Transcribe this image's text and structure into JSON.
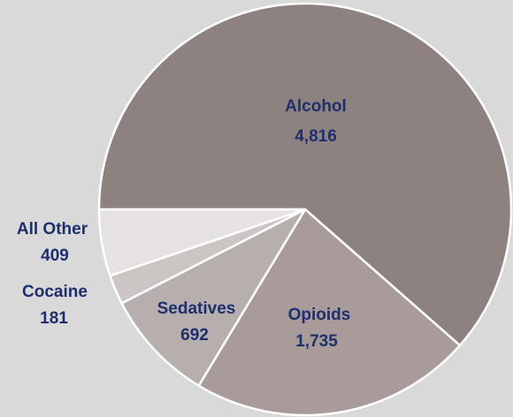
{
  "chart_data": {
    "type": "pie",
    "title": "",
    "series": [
      {
        "values": [
          4816,
          1735,
          692,
          181,
          409
        ]
      }
    ],
    "categories": [
      "Alcohol",
      "Opioids",
      "Sedatives",
      "Cocaine",
      "All Other"
    ],
    "value_labels": [
      "4,816",
      "1,735",
      "692",
      "181",
      "409"
    ],
    "colors": [
      "#8e8281",
      "#a89b9a",
      "#b7afae",
      "#cbc5c4",
      "#e6e2e1"
    ],
    "legend": "none",
    "data_labels": "category and value"
  }
}
